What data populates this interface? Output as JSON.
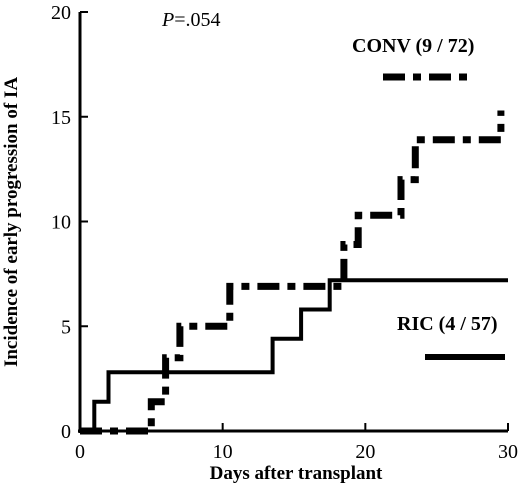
{
  "chart_data": {
    "type": "line",
    "xlabel": "Days after transplant",
    "ylabel": "Incidence of early progression of IA",
    "xlim": [
      0,
      30
    ],
    "ylim": [
      0,
      20
    ],
    "x_ticks": [
      "0",
      "10",
      "20",
      "30"
    ],
    "y_ticks": [
      "0",
      "5",
      "10",
      "15",
      "20"
    ],
    "annotation_p_prefix": "P",
    "annotation_p_value": "=.054",
    "grid": false,
    "legend_placement": "right",
    "series": [
      {
        "name": "CONV (9 / 72)",
        "line_style": "dash-dot",
        "color": "#000000",
        "points": [
          [
            0,
            0
          ],
          [
            5,
            0
          ],
          [
            5,
            1.4
          ],
          [
            6,
            1.4
          ],
          [
            6,
            3.5
          ],
          [
            7,
            3.5
          ],
          [
            7,
            5.0
          ],
          [
            10.5,
            5.0
          ],
          [
            10.5,
            6.9
          ],
          [
            18.5,
            6.9
          ],
          [
            18.5,
            8.9
          ],
          [
            19.5,
            8.9
          ],
          [
            19.5,
            10.3
          ],
          [
            22.5,
            10.3
          ],
          [
            22.5,
            12.0
          ],
          [
            23.5,
            12.0
          ],
          [
            23.5,
            13.9
          ],
          [
            29.5,
            13.9
          ],
          [
            29.5,
            15.3
          ]
        ]
      },
      {
        "name": "RIC (4 / 57)",
        "line_style": "solid",
        "color": "#000000",
        "points": [
          [
            1,
            0
          ],
          [
            1,
            1.4
          ],
          [
            2,
            1.4
          ],
          [
            2,
            2.8
          ],
          [
            13.5,
            2.8
          ],
          [
            13.5,
            4.4
          ],
          [
            15.5,
            4.4
          ],
          [
            15.5,
            5.8
          ],
          [
            17.5,
            5.8
          ],
          [
            17.5,
            7.2
          ],
          [
            30,
            7.2
          ]
        ]
      }
    ]
  }
}
